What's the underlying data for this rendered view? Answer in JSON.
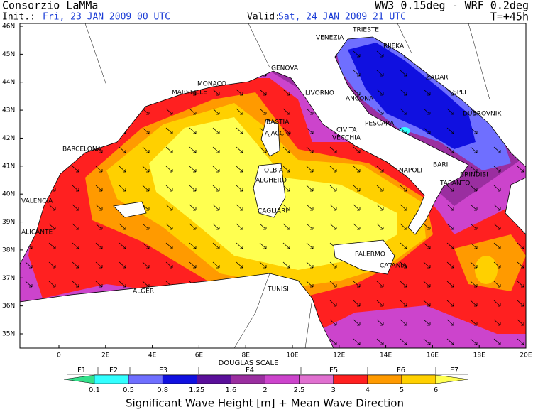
{
  "header": {
    "left_title": "Consorzio LaMMa",
    "init_label": "Init.:",
    "init_value": "Fri, 23 JAN 2009  00 UTC",
    "right_title": "WW3 0.15deg - WRF 0.2deg",
    "valid_label": "Valid:",
    "valid_value": "Sat, 24 JAN 2009  21 UTC",
    "forecast_step": "T=+45h"
  },
  "map": {
    "lat_labels": [
      "46N",
      "45N",
      "44N",
      "43N",
      "42N",
      "41N",
      "40N",
      "39N",
      "38N",
      "37N",
      "36N",
      "35N"
    ],
    "lon_labels": [
      "0",
      "2E",
      "4E",
      "6E",
      "8E",
      "10E",
      "12E",
      "14E",
      "16E",
      "18E",
      "20E"
    ],
    "cities": [
      "TRIESTE",
      "VENEZIA",
      "RIJEKA",
      "MONACO",
      "GENOVA",
      "MARSEILLE",
      "LIVORNO",
      "ZADAR",
      "SPLIT",
      "ANCONA",
      "DUBROVNIK",
      "BASTIA",
      "PESCARA",
      "AJACCIO",
      "CIVITA",
      "VECCHIA",
      "BARCELONA",
      "NAPOLI",
      "OLBIA",
      "BARI",
      "BRINDISI",
      "ALGHERO",
      "TARANTO",
      "VALENCIA",
      "CAGLIARI",
      "ALICANTE",
      "PALERMO",
      "CATANIA",
      "ALGERI",
      "TUNISI"
    ]
  },
  "legend": {
    "scale_title": "DOUGLAS SCALE",
    "douglas": [
      "F1",
      "F2",
      "F3",
      "F4",
      "F5",
      "F6",
      "F7"
    ],
    "breaks": [
      0.1,
      0.5,
      0.8,
      1.25,
      1.6,
      2,
      2.5,
      3,
      4,
      5,
      6
    ],
    "colors": [
      "#33e08a",
      "#33ffff",
      "#6f6fff",
      "#1010e0",
      "#5a0f9a",
      "#9a2ea0",
      "#cc44cc",
      "#e070d0",
      "#ff2020",
      "#ff9a00",
      "#ffd000",
      "#ffff50"
    ],
    "caption": "Significant Wave Height [m] + Mean Wave Direction"
  }
}
